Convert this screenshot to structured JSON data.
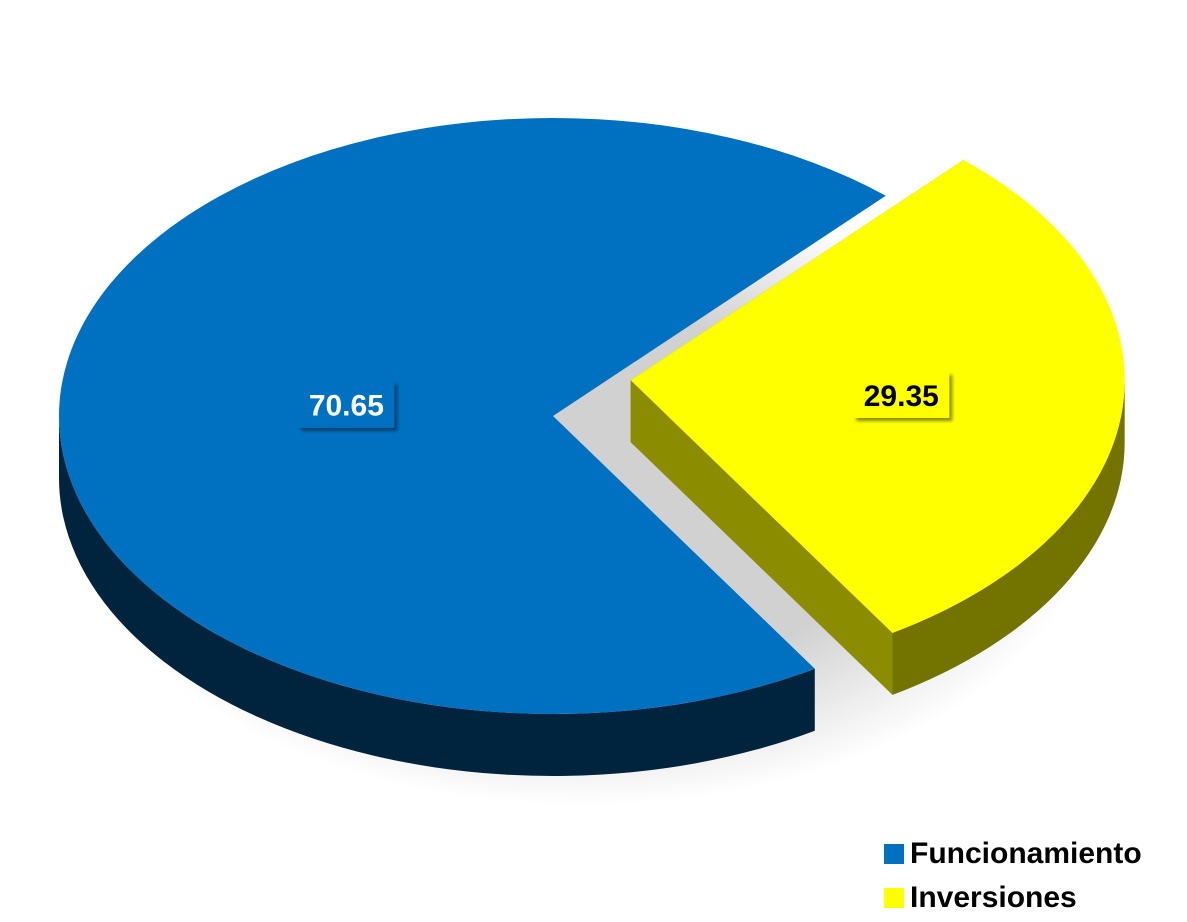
{
  "chart_data": {
    "type": "pie",
    "style": "3d-exploded",
    "series": [
      {
        "slices": [
          {
            "label": "Funcionamiento",
            "value": 70.65,
            "color": "#0070C0",
            "label_text": "70.65",
            "label_text_color": "#ffffff"
          },
          {
            "label": "Inversiones",
            "value": 29.35,
            "color": "#FFFF00",
            "label_text": "29.35",
            "label_text_color": "#000000"
          }
        ]
      }
    ],
    "legend": {
      "position": "bottom-right",
      "items": [
        "Funcionamiento",
        "Inversiones"
      ]
    }
  }
}
